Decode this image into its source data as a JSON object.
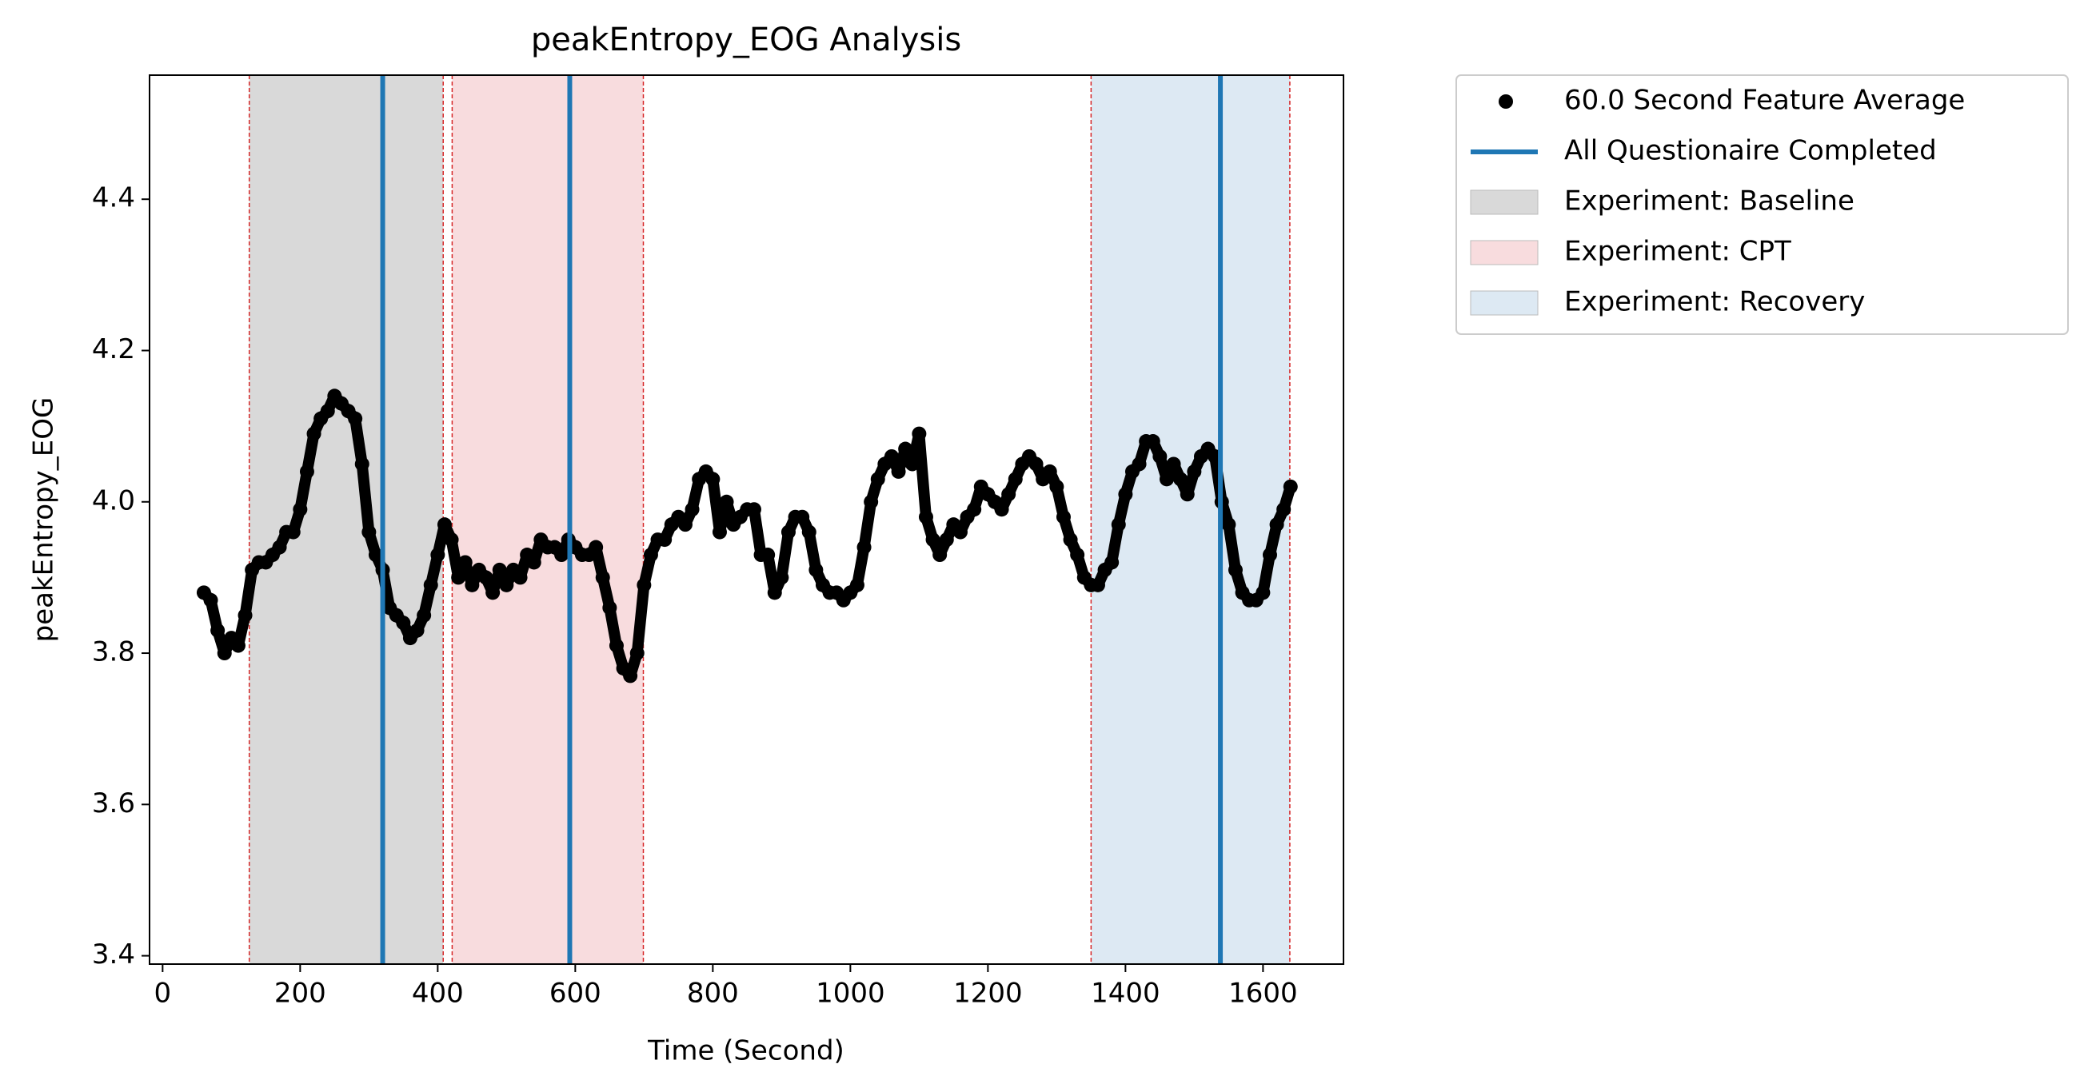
{
  "chart_data": {
    "type": "scatter",
    "title": "peakEntropy_EOG Analysis",
    "x_label": "Time (Second)",
    "y_label": "peakEntropy_EOG",
    "x": [
      60,
      70,
      80,
      90,
      100,
      110,
      120,
      130,
      140,
      150,
      160,
      170,
      180,
      190,
      200,
      210,
      220,
      230,
      240,
      250,
      260,
      270,
      280,
      290,
      300,
      310,
      320,
      330,
      340,
      350,
      360,
      370,
      380,
      390,
      400,
      410,
      420,
      430,
      440,
      450,
      460,
      470,
      480,
      490,
      500,
      510,
      520,
      530,
      540,
      550,
      560,
      570,
      580,
      590,
      600,
      610,
      620,
      630,
      640,
      650,
      660,
      670,
      680,
      690,
      700,
      710,
      720,
      730,
      740,
      750,
      760,
      770,
      780,
      790,
      800,
      810,
      820,
      830,
      840,
      850,
      860,
      870,
      880,
      890,
      900,
      910,
      920,
      930,
      940,
      950,
      960,
      970,
      980,
      990,
      1000,
      1010,
      1020,
      1030,
      1040,
      1050,
      1060,
      1070,
      1080,
      1090,
      1100,
      1110,
      1120,
      1130,
      1140,
      1150,
      1160,
      1170,
      1180,
      1190,
      1200,
      1210,
      1220,
      1230,
      1240,
      1250,
      1260,
      1270,
      1280,
      1290,
      1300,
      1310,
      1320,
      1330,
      1340,
      1350,
      1360,
      1370,
      1380,
      1390,
      1400,
      1410,
      1420,
      1430,
      1440,
      1450,
      1460,
      1470,
      1480,
      1490,
      1500,
      1510,
      1520,
      1530,
      1540,
      1550,
      1560,
      1570,
      1580,
      1590,
      1600,
      1610,
      1620,
      1630,
      1640
    ],
    "series": [
      {
        "name": "60.0 Second Feature Average",
        "color": "#000000",
        "values": [
          3.88,
          3.87,
          3.83,
          3.8,
          3.82,
          3.81,
          3.85,
          3.91,
          3.92,
          3.92,
          3.93,
          3.94,
          3.96,
          3.96,
          3.99,
          4.04,
          4.09,
          4.11,
          4.12,
          4.14,
          4.13,
          4.12,
          4.11,
          4.05,
          3.96,
          3.93,
          3.91,
          3.86,
          3.85,
          3.84,
          3.82,
          3.83,
          3.85,
          3.89,
          3.93,
          3.97,
          3.95,
          3.9,
          3.92,
          3.89,
          3.91,
          3.9,
          3.88,
          3.91,
          3.89,
          3.91,
          3.9,
          3.93,
          3.92,
          3.95,
          3.94,
          3.94,
          3.93,
          3.95,
          3.94,
          3.93,
          3.93,
          3.94,
          3.9,
          3.86,
          3.81,
          3.78,
          3.77,
          3.8,
          3.89,
          3.93,
          3.95,
          3.95,
          3.97,
          3.98,
          3.97,
          3.99,
          4.03,
          4.04,
          4.03,
          3.96,
          4.0,
          3.97,
          3.98,
          3.99,
          3.99,
          3.93,
          3.93,
          3.88,
          3.9,
          3.96,
          3.98,
          3.98,
          3.96,
          3.91,
          3.89,
          3.88,
          3.88,
          3.87,
          3.88,
          3.89,
          3.94,
          4.0,
          4.03,
          4.05,
          4.06,
          4.04,
          4.07,
          4.05,
          4.09,
          3.98,
          3.95,
          3.93,
          3.95,
          3.97,
          3.96,
          3.98,
          3.99,
          4.02,
          4.01,
          4.0,
          3.99,
          4.01,
          4.03,
          4.05,
          4.06,
          4.05,
          4.03,
          4.04,
          4.02,
          3.98,
          3.95,
          3.93,
          3.9,
          3.89,
          3.89,
          3.91,
          3.92,
          3.97,
          4.01,
          4.04,
          4.05,
          4.08,
          4.08,
          4.06,
          4.03,
          4.05,
          4.03,
          4.01,
          4.04,
          4.06,
          4.07,
          4.06,
          4.0,
          3.97,
          3.91,
          3.88,
          3.87,
          3.87,
          3.88,
          3.93,
          3.97,
          3.99,
          4.02
        ]
      }
    ],
    "vlines": {
      "name": "All Questionaire Completed",
      "color": "#1f77b4",
      "x": [
        320,
        592,
        1538
      ]
    },
    "spans": [
      {
        "name": "Experiment: Baseline",
        "color": "#d9d9d9",
        "range": [
          126,
          408
        ]
      },
      {
        "name": "Experiment: CPT",
        "color": "#f8dcde",
        "range": [
          421,
          699
        ]
      },
      {
        "name": "Experiment: Recovery",
        "color": "#dde9f3",
        "range": [
          1350,
          1639
        ]
      }
    ],
    "span_edge_color": "#d62728",
    "xlim": [
      -19,
      1717
    ],
    "ylim": [
      3.389,
      4.564
    ],
    "xticks": [
      0,
      200,
      400,
      600,
      800,
      1000,
      1200,
      1400,
      1600
    ],
    "yticks": [
      3.4,
      3.6,
      3.8,
      {
        "value": 4,
        "label": "4.0"
      },
      4.2,
      4.4
    ],
    "grid": false,
    "legend": "outside-upper-right"
  }
}
